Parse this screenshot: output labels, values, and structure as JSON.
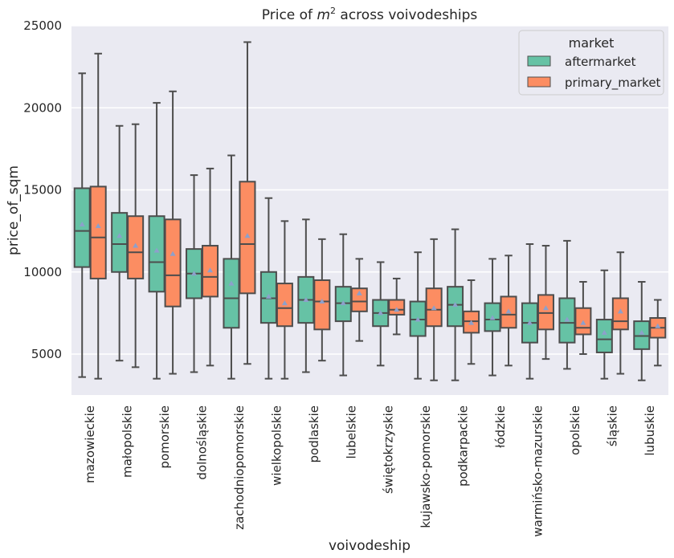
{
  "chart_data": {
    "type": "box",
    "title": "Price of m² across voivodeships",
    "xlabel": "voivodeship",
    "ylabel": "price_of_sqm",
    "ylim": [
      2500,
      25000
    ],
    "yticks": [
      5000,
      10000,
      15000,
      20000,
      25000
    ],
    "grid": true,
    "legend": {
      "title": "market",
      "placement": "top-right",
      "entries": [
        "aftermarket",
        "primary_market"
      ]
    },
    "categories": [
      "mazowieckie",
      "małopolskie",
      "pomorskie",
      "dolnośląskie",
      "zachodniopomorskie",
      "wielkopolskie",
      "podlaskie",
      "lubelskie",
      "świętokrzyskie",
      "kujawsko-pomorskie",
      "podkarpackie",
      "łódzkie",
      "warmińsko-mazurskie",
      "opolskie",
      "śląskie",
      "lubuskie"
    ],
    "series": [
      {
        "name": "aftermarket",
        "color": "#66c2a5",
        "boxes": [
          {
            "whislo": 3600,
            "q1": 10300,
            "med": 12500,
            "q3": 15100,
            "whishi": 22100,
            "mean": 12900
          },
          {
            "whislo": 4600,
            "q1": 10000,
            "med": 11700,
            "q3": 13600,
            "whishi": 18900,
            "mean": 12200
          },
          {
            "whislo": 3500,
            "q1": 8800,
            "med": 10600,
            "q3": 13400,
            "whishi": 20300,
            "mean": 11300
          },
          {
            "whislo": 3900,
            "q1": 8400,
            "med": 9900,
            "q3": 11400,
            "whishi": 15900,
            "mean": 9900
          },
          {
            "whislo": 3500,
            "q1": 6600,
            "med": 8400,
            "q3": 10800,
            "whishi": 17100,
            "mean": 9300
          },
          {
            "whislo": 3500,
            "q1": 6900,
            "med": 8400,
            "q3": 10000,
            "whishi": 14500,
            "mean": 8500
          },
          {
            "whislo": 3900,
            "q1": 6900,
            "med": 8300,
            "q3": 9700,
            "whishi": 13200,
            "mean": 8300
          },
          {
            "whislo": 3700,
            "q1": 7000,
            "med": 8100,
            "q3": 9100,
            "whishi": 12300,
            "mean": 8100
          },
          {
            "whislo": 4300,
            "q1": 6700,
            "med": 7500,
            "q3": 8300,
            "whishi": 10600,
            "mean": 7500
          },
          {
            "whislo": 3500,
            "q1": 6100,
            "med": 7100,
            "q3": 8200,
            "whishi": 11200,
            "mean": 7100
          },
          {
            "whislo": 3400,
            "q1": 6700,
            "med": 8000,
            "q3": 9100,
            "whishi": 12600,
            "mean": 8000
          },
          {
            "whislo": 3700,
            "q1": 6400,
            "med": 7100,
            "q3": 8100,
            "whishi": 10800,
            "mean": 7200
          },
          {
            "whislo": 3500,
            "q1": 5700,
            "med": 6900,
            "q3": 8100,
            "whishi": 11700,
            "mean": 6900
          },
          {
            "whislo": 4100,
            "q1": 5700,
            "med": 6900,
            "q3": 8400,
            "whishi": 11900,
            "mean": 7100
          },
          {
            "whislo": 3500,
            "q1": 5100,
            "med": 5900,
            "q3": 7100,
            "whishi": 10100,
            "mean": 6300
          },
          {
            "whislo": 3400,
            "q1": 5300,
            "med": 6100,
            "q3": 7000,
            "whishi": 9400,
            "mean": 6300
          }
        ]
      },
      {
        "name": "primary_market",
        "color": "#fc8d62",
        "boxes": [
          {
            "whislo": 3500,
            "q1": 9600,
            "med": 12100,
            "q3": 15200,
            "whishi": 23300,
            "mean": 12800
          },
          {
            "whislo": 4200,
            "q1": 9600,
            "med": 11200,
            "q3": 13400,
            "whishi": 19000,
            "mean": 11600
          },
          {
            "whislo": 3800,
            "q1": 7900,
            "med": 9800,
            "q3": 13200,
            "whishi": 21000,
            "mean": 11100
          },
          {
            "whislo": 4300,
            "q1": 8500,
            "med": 9700,
            "q3": 11600,
            "whishi": 16300,
            "mean": 10100
          },
          {
            "whislo": 4400,
            "q1": 8700,
            "med": 11700,
            "q3": 15500,
            "whishi": 24000,
            "mean": 12200
          },
          {
            "whislo": 3500,
            "q1": 6700,
            "med": 7800,
            "q3": 9300,
            "whishi": 13100,
            "mean": 8100
          },
          {
            "whislo": 4600,
            "q1": 6500,
            "med": 8200,
            "q3": 9500,
            "whishi": 12000,
            "mean": 8200
          },
          {
            "whislo": 5800,
            "q1": 7600,
            "med": 8200,
            "q3": 9000,
            "whishi": 10800,
            "mean": 8700
          },
          {
            "whislo": 6200,
            "q1": 7400,
            "med": 7700,
            "q3": 8300,
            "whishi": 9600,
            "mean": 7700
          },
          {
            "whislo": 3400,
            "q1": 6700,
            "med": 7700,
            "q3": 9000,
            "whishi": 12000,
            "mean": 7800
          },
          {
            "whislo": 4400,
            "q1": 6300,
            "med": 7000,
            "q3": 7600,
            "whishi": 9500,
            "mean": 6900
          },
          {
            "whislo": 4300,
            "q1": 6600,
            "med": 7400,
            "q3": 8500,
            "whishi": 11000,
            "mean": 7600
          },
          {
            "whislo": 4700,
            "q1": 6500,
            "med": 7500,
            "q3": 8600,
            "whishi": 11600,
            "mean": 7800
          },
          {
            "whislo": 5000,
            "q1": 6200,
            "med": 6600,
            "q3": 7800,
            "whishi": 9400,
            "mean": 6900
          },
          {
            "whislo": 3800,
            "q1": 6500,
            "med": 7000,
            "q3": 8400,
            "whishi": 11200,
            "mean": 7600
          },
          {
            "whislo": 4300,
            "q1": 6000,
            "med": 6600,
            "q3": 7200,
            "whishi": 8300,
            "mean": 6700
          }
        ]
      }
    ]
  },
  "style": {
    "background": "#eaeaf2",
    "gridline": "#ffffff",
    "line": "#4d4d4d",
    "mean_marker": "#8da0cb"
  }
}
